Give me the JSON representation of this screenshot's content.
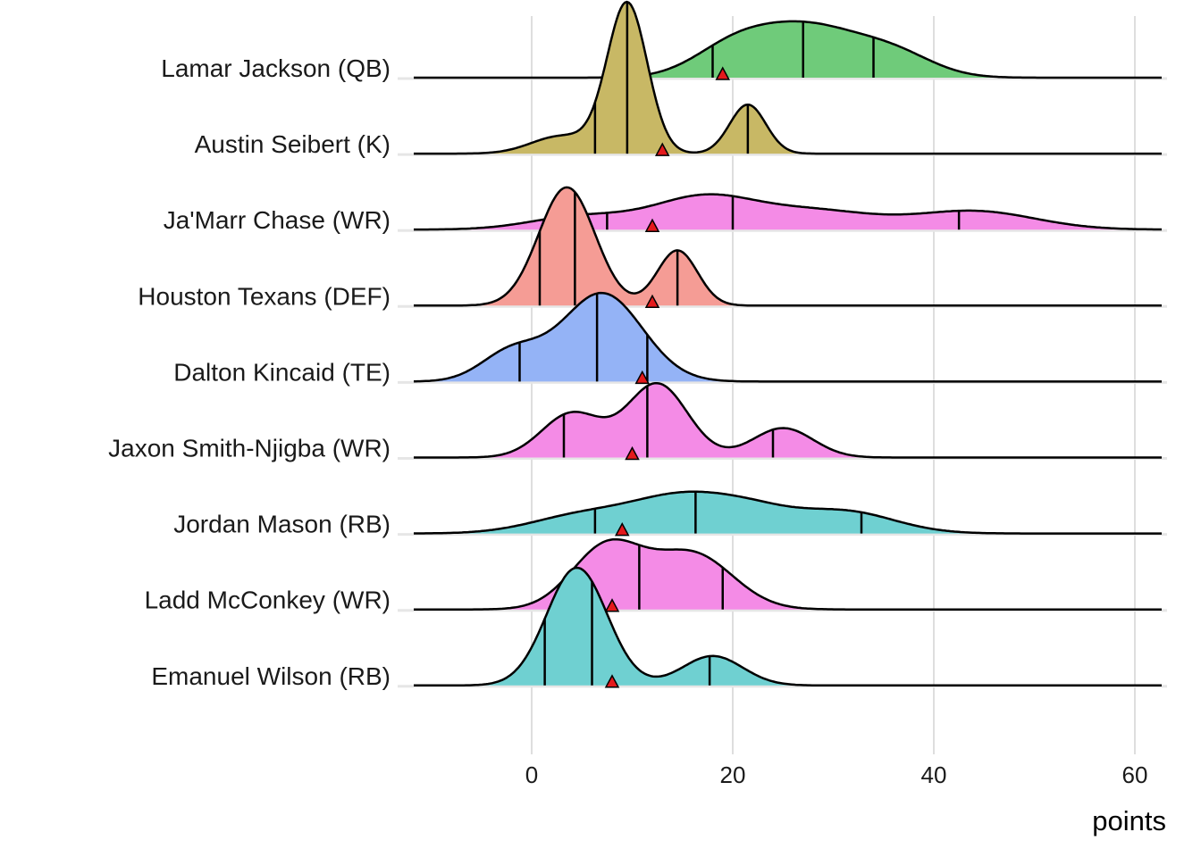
{
  "chart_data": {
    "type": "ridgeline",
    "title": "",
    "xlabel": "points",
    "ylabel": "",
    "xlim": [
      -15,
      63
    ],
    "xticks": [
      0,
      20,
      40,
      60
    ],
    "xtick_labels": [
      "0",
      "20",
      "40",
      "60"
    ],
    "grid": "vertical",
    "marker_color": "#e41a1c",
    "series": [
      {
        "name": "Lamar Jackson (QB)",
        "color": "#6fcb7a",
        "components": [
          [
            20,
            4,
            0.25
          ],
          [
            27.5,
            5,
            0.55
          ],
          [
            36,
            4,
            0.2
          ]
        ],
        "quantiles": [
          18,
          27,
          34
        ],
        "marker": 19
      },
      {
        "name": "Austin Seibert (K)",
        "color": "#c8b865",
        "components": [
          [
            3,
            3,
            0.12
          ],
          [
            9.5,
            2,
            0.68
          ],
          [
            21.5,
            1.8,
            0.2
          ]
        ],
        "quantiles": [
          6.3,
          9.5,
          21.5
        ],
        "marker": 13
      },
      {
        "name": "Ja'Marr Chase (WR)",
        "color": "#f48be6",
        "components": [
          [
            5,
            5,
            0.15
          ],
          [
            17,
            5,
            0.35
          ],
          [
            28,
            6,
            0.25
          ],
          [
            44,
            6,
            0.25
          ]
        ],
        "quantiles": [
          7.5,
          20,
          42.5
        ],
        "marker": 12
      },
      {
        "name": "Houston Texans (DEF)",
        "color": "#f59c95",
        "components": [
          [
            3.5,
            2.8,
            0.75
          ],
          [
            14.5,
            2,
            0.25
          ]
        ],
        "quantiles": [
          0.8,
          4.3,
          14.5
        ],
        "marker": 12
      },
      {
        "name": "Dalton Kincaid (TE)",
        "color": "#94b3f6",
        "components": [
          [
            -2,
            3,
            0.2
          ],
          [
            7,
            4,
            0.8
          ]
        ],
        "quantiles": [
          -1.2,
          6.5,
          11.5
        ],
        "marker": 11
      },
      {
        "name": "Jaxon Smith-Njigba (WR)",
        "color": "#f48be6",
        "components": [
          [
            4,
            3,
            0.3
          ],
          [
            12.5,
            3,
            0.5
          ],
          [
            25,
            3,
            0.2
          ]
        ],
        "quantiles": [
          3.2,
          11.5,
          24
        ],
        "marker": 10
      },
      {
        "name": "Jordan Mason (RB)",
        "color": "#6fd0d1",
        "components": [
          [
            5,
            5,
            0.2
          ],
          [
            15,
            5,
            0.4
          ],
          [
            22,
            4,
            0.15
          ],
          [
            31,
            5,
            0.25
          ]
        ],
        "quantiles": [
          6.3,
          16.3,
          32.8
        ],
        "marker": 9
      },
      {
        "name": "Ladd McConkey (WR)",
        "color": "#f48be6",
        "components": [
          [
            7.5,
            3.5,
            0.5
          ],
          [
            16,
            4,
            0.5
          ]
        ],
        "quantiles": [
          4,
          10.7,
          19
        ],
        "marker": 8
      },
      {
        "name": "Emanuel Wilson (RB)",
        "color": "#6fd0d1",
        "components": [
          [
            4.5,
            3,
            0.8
          ],
          [
            18,
            3,
            0.2
          ]
        ],
        "quantiles": [
          1.3,
          6,
          17.7
        ],
        "marker": 8
      }
    ]
  }
}
